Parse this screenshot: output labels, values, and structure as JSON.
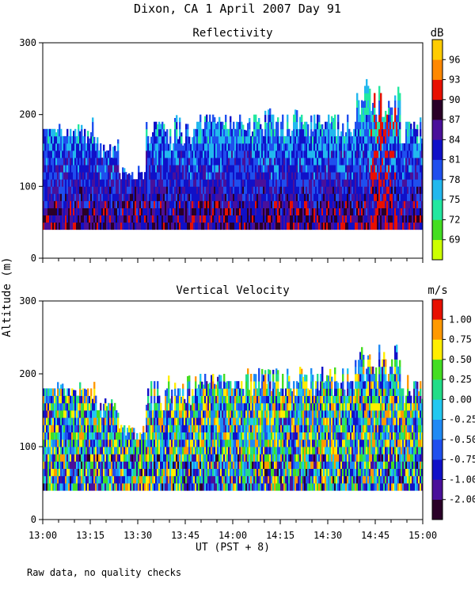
{
  "page_title": "Dixon, CA   1 April 2007   Day  91",
  "footnote": "Raw data, no quality checks",
  "shared_ylabel": "Altitude (m)",
  "chart_data": [
    {
      "type": "heatmap",
      "title": "Reflectivity",
      "colorbar_unit": "dB",
      "colorbar_ticks": [
        "69",
        "72",
        "75",
        "78",
        "81",
        "84",
        "87",
        "90",
        "93",
        "96"
      ],
      "colorbar_colors": [
        "#ccff00",
        "#44dd22",
        "#22e8a0",
        "#22b8ee",
        "#1f4fee",
        "#1010c8",
        "#4a109a",
        "#2a0028",
        "#e81000",
        "#ff8800",
        "#ffcc00"
      ],
      "ylim": [
        0,
        300
      ],
      "yticks": [
        "0",
        "100",
        "200",
        "300"
      ],
      "xlim": [
        "13:00",
        "15:00"
      ],
      "data_range_altitude_m": [
        40,
        260
      ],
      "note": "Mostly 78-87 dB below 200 m with high reflectivity near 14:50"
    },
    {
      "type": "heatmap",
      "title": "Vertical Velocity",
      "colorbar_unit": "m/s",
      "colorbar_ticks": [
        "-2.00",
        "-1.00",
        "-0.75",
        "-0.50",
        "-0.25",
        "0.00",
        "0.25",
        "0.50",
        "0.75",
        "1.00"
      ],
      "colorbar_colors": [
        "#2a0028",
        "#4a109a",
        "#1010c8",
        "#1f4fee",
        "#1f8af5",
        "#22c8f0",
        "#22dd88",
        "#44dd22",
        "#ffee00",
        "#ff9900",
        "#e81000"
      ],
      "ylim": [
        0,
        300
      ],
      "yticks": [
        "0",
        "100",
        "200",
        "300"
      ],
      "xlim": [
        "13:00",
        "15:00"
      ],
      "xticks": [
        "13:00",
        "13:15",
        "13:30",
        "13:45",
        "14:00",
        "14:15",
        "14:30",
        "14:45",
        "15:00"
      ],
      "xlabel": "UT   (PST + 8)",
      "data_range_altitude_m": [
        40,
        260
      ]
    }
  ]
}
